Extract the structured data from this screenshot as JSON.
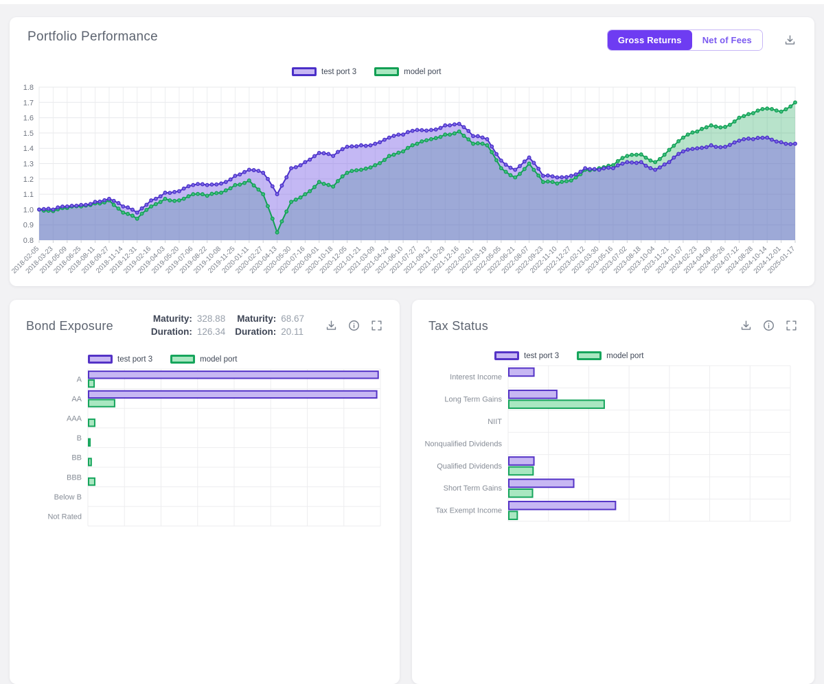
{
  "portfolio_card": {
    "title": "Portfolio Performance",
    "toggle": {
      "options": [
        "Gross Returns",
        "Net of Fees"
      ],
      "active_index": 0
    },
    "icons": [
      "download-icon"
    ]
  },
  "bond_card": {
    "title": "Bond Exposure",
    "stats_rows": [
      [
        {
          "label": "Maturity:",
          "value": "328.88"
        },
        {
          "label": "Maturity:",
          "value": "68.67"
        }
      ],
      [
        {
          "label": "Duration:",
          "value": "126.34"
        },
        {
          "label": "Duration:",
          "value": "20.11"
        }
      ]
    ],
    "icons": [
      "download-icon",
      "info-icon",
      "fullscreen-icon"
    ]
  },
  "tax_card": {
    "title": "Tax Status",
    "icons": [
      "download-icon",
      "info-icon",
      "fullscreen-icon"
    ]
  },
  "colors": {
    "accent_purple": "#6e3cf2",
    "series_purple_line": "#4a2fc8",
    "series_purple_marker": "#7c68e6",
    "series_purple_area": "rgba(124,98,230,0.45)",
    "series_purple_bar_fill": "#c7b7f3",
    "series_green_line": "#129f54",
    "series_green_marker": "#3fbf7f",
    "series_green_area": "rgba(34,168,94,0.32)",
    "series_green_bar_fill": "#a9e7c1",
    "grid": "#e7e8eb",
    "axis_text": "#7c828c"
  },
  "chart_data": [
    {
      "id": "performance",
      "type": "area",
      "legend_position": "top",
      "grid": true,
      "ylim": [
        0.8,
        1.8
      ],
      "ytick_step": 0.1,
      "x": [
        "2018-02-05",
        "2018-03-23",
        "2018-05-09",
        "2018-06-25",
        "2018-08-11",
        "2018-09-27",
        "2018-11-14",
        "2018-12-31",
        "2019-02-16",
        "2019-04-03",
        "2019-05-20",
        "2019-07-06",
        "2019-08-22",
        "2019-10-08",
        "2019-11-25",
        "2020-01-11",
        "2020-02-27",
        "2020-04-13",
        "2020-05-30",
        "2020-07-16",
        "2020-09-01",
        "2020-10-18",
        "2020-12-05",
        "2021-01-21",
        "2021-03-09",
        "2021-04-24",
        "2021-06-10",
        "2021-07-27",
        "2021-09-12",
        "2021-10-29",
        "2021-12-16",
        "2022-02-01",
        "2022-03-19",
        "2022-05-05",
        "2022-06-21",
        "2022-08-07",
        "2022-09-23",
        "2022-11-10",
        "2022-12-27",
        "2023-02-12",
        "2023-03-30",
        "2023-05-16",
        "2023-07-02",
        "2023-08-18",
        "2023-10-04",
        "2023-11-21",
        "2024-01-07",
        "2024-02-23",
        "2024-04-09",
        "2024-05-26",
        "2024-07-12",
        "2024-08-28",
        "2024-10-14",
        "2024-12-01",
        "2025-01-17"
      ],
      "series": [
        {
          "name": "test port 3",
          "line": "#4a2fc8",
          "marker": "#7c68e6",
          "area": "rgba(124,98,230,0.45)",
          "values": [
            1.0,
            1.0,
            1.02,
            1.03,
            1.05,
            1.07,
            1.02,
            0.98,
            1.06,
            1.11,
            1.12,
            1.16,
            1.16,
            1.17,
            1.22,
            1.26,
            1.24,
            1.1,
            1.27,
            1.31,
            1.37,
            1.35,
            1.41,
            1.42,
            1.43,
            1.47,
            1.49,
            1.52,
            1.52,
            1.55,
            1.56,
            1.48,
            1.46,
            1.32,
            1.26,
            1.34,
            1.22,
            1.21,
            1.22,
            1.27,
            1.26,
            1.27,
            1.31,
            1.31,
            1.26,
            1.31,
            1.38,
            1.4,
            1.42,
            1.41,
            1.45,
            1.46,
            1.47,
            1.44,
            1.43
          ]
        },
        {
          "name": "model port",
          "line": "#129f54",
          "marker": "#3fbf7f",
          "area": "rgba(34,168,94,0.32)",
          "values": [
            1.0,
            0.99,
            1.01,
            1.02,
            1.04,
            1.06,
            0.98,
            0.94,
            1.02,
            1.07,
            1.06,
            1.1,
            1.09,
            1.11,
            1.16,
            1.19,
            1.1,
            0.85,
            1.05,
            1.1,
            1.18,
            1.15,
            1.24,
            1.26,
            1.29,
            1.35,
            1.38,
            1.43,
            1.46,
            1.49,
            1.51,
            1.43,
            1.42,
            1.27,
            1.21,
            1.3,
            1.18,
            1.17,
            1.19,
            1.26,
            1.27,
            1.29,
            1.35,
            1.36,
            1.31,
            1.39,
            1.47,
            1.51,
            1.55,
            1.54,
            1.6,
            1.63,
            1.66,
            1.64,
            1.7
          ]
        }
      ]
    },
    {
      "id": "bond_exposure",
      "type": "bar",
      "orientation": "horizontal",
      "axis_labels_hidden": true,
      "xlim": [
        0,
        100
      ],
      "gridline_intervals": 8,
      "categories": [
        "A",
        "AA",
        "AAA",
        "B",
        "BB",
        "BBB",
        "Below B",
        "Not Rated"
      ],
      "series": [
        {
          "name": "test port 3",
          "stroke": "#5433c6",
          "fill": "#c7b7f3",
          "values_pct": [
            99.0,
            98.5,
            0,
            0,
            0,
            0,
            0,
            0
          ]
        },
        {
          "name": "model port",
          "stroke": "#16a55c",
          "fill": "#a9e7c1",
          "values_pct": [
            1.9,
            8.9,
            2.1,
            0.5,
            0.9,
            2.1,
            0,
            0
          ]
        }
      ]
    },
    {
      "id": "tax_status",
      "type": "bar",
      "orientation": "horizontal",
      "axis_labels_hidden": true,
      "xlim": [
        0,
        100
      ],
      "gridline_intervals": 7,
      "categories": [
        "Interest Income",
        "Long Term Gains",
        "NIIT",
        "Nonqualified Dividends",
        "Qualified Dividends",
        "Short Term Gains",
        "Tax Exempt Income"
      ],
      "series": [
        {
          "name": "test port 3",
          "stroke": "#5433c6",
          "fill": "#c7b7f3",
          "values_pct": [
            8.9,
            17.0,
            0,
            0,
            8.9,
            23.0,
            37.8
          ]
        },
        {
          "name": "model port",
          "stroke": "#16a55c",
          "fill": "#a9e7c1",
          "values_pct": [
            0,
            33.8,
            0,
            0,
            8.6,
            8.4,
            3.0
          ]
        }
      ]
    }
  ]
}
